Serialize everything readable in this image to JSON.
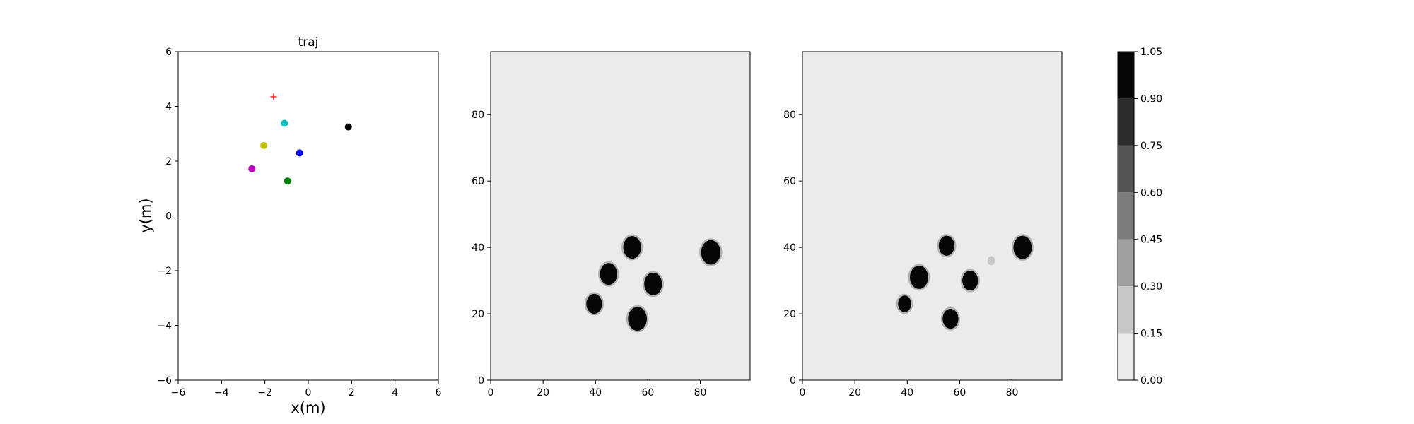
{
  "chart_data": [
    {
      "type": "scatter",
      "title": "traj",
      "xlabel": "x(m)",
      "ylabel": "y(m)",
      "xlim": [
        -6,
        6
      ],
      "ylim": [
        -6,
        6
      ],
      "xticks": [
        "−6",
        "−4",
        "−2",
        "0",
        "2",
        "4",
        "6"
      ],
      "yticks": [
        "−6",
        "−4",
        "−2",
        "0",
        "2",
        "4",
        "6"
      ],
      "grid": false,
      "points": [
        {
          "x": -1.6,
          "y": 4.35,
          "marker": "plus",
          "color": "#ff0000"
        },
        {
          "x": -1.1,
          "y": 3.38,
          "marker": "circle",
          "color": "#00bfbf"
        },
        {
          "x": 1.85,
          "y": 3.25,
          "marker": "circle",
          "color": "#000000"
        },
        {
          "x": -2.05,
          "y": 2.57,
          "marker": "circle",
          "color": "#bfbf00"
        },
        {
          "x": -0.4,
          "y": 2.3,
          "marker": "circle",
          "color": "#0000ff"
        },
        {
          "x": -2.6,
          "y": 1.72,
          "marker": "circle",
          "color": "#bf00bf"
        },
        {
          "x": -0.95,
          "y": 1.27,
          "marker": "circle",
          "color": "#008000"
        }
      ]
    },
    {
      "type": "heatmap",
      "xlim": [
        0,
        99
      ],
      "ylim": [
        0,
        99
      ],
      "xticks": [
        "0",
        "20",
        "40",
        "60",
        "80"
      ],
      "yticks": [
        "0",
        "20",
        "40",
        "60",
        "80"
      ],
      "background_level": 0.05,
      "blobs": [
        {
          "cx": 54,
          "cy": 40,
          "r": 3.4,
          "level": 1.0
        },
        {
          "cx": 84,
          "cy": 38.5,
          "r": 3.7,
          "level": 1.0
        },
        {
          "cx": 45,
          "cy": 32,
          "r": 3.3,
          "level": 1.0
        },
        {
          "cx": 62,
          "cy": 29,
          "r": 3.4,
          "level": 1.0
        },
        {
          "cx": 39.5,
          "cy": 23,
          "r": 3.0,
          "level": 1.0
        },
        {
          "cx": 56,
          "cy": 18.5,
          "r": 3.6,
          "level": 1.0
        }
      ]
    },
    {
      "type": "heatmap",
      "xlim": [
        0,
        99
      ],
      "ylim": [
        0,
        99
      ],
      "xticks": [
        "0",
        "20",
        "40",
        "60",
        "80"
      ],
      "yticks": [
        "0",
        "20",
        "40",
        "60",
        "80"
      ],
      "background_level": 0.05,
      "blobs": [
        {
          "cx": 55,
          "cy": 40.5,
          "r": 3.0,
          "level": 1.0
        },
        {
          "cx": 84,
          "cy": 40,
          "r": 3.5,
          "level": 1.0
        },
        {
          "cx": 44.5,
          "cy": 31,
          "r": 3.5,
          "level": 1.0
        },
        {
          "cx": 64,
          "cy": 30,
          "r": 3.0,
          "level": 1.0
        },
        {
          "cx": 39,
          "cy": 23,
          "r": 2.5,
          "level": 1.0
        },
        {
          "cx": 56.5,
          "cy": 18.5,
          "r": 3.0,
          "level": 1.0
        },
        {
          "cx": 72,
          "cy": 36,
          "r": 1.4,
          "level": 0.25
        }
      ]
    },
    {
      "type": "colorbar",
      "levels": [
        0.0,
        0.15,
        0.3,
        0.45,
        0.6,
        0.75,
        0.9,
        1.05
      ],
      "tick_labels": [
        "0.00",
        "0.15",
        "0.30",
        "0.45",
        "0.60",
        "0.75",
        "0.90",
        "1.05"
      ],
      "colors": [
        "#ebebeb",
        "#c8c8c8",
        "#a0a0a0",
        "#7b7b7b",
        "#555555",
        "#2d2d2d",
        "#060606"
      ]
    }
  ]
}
